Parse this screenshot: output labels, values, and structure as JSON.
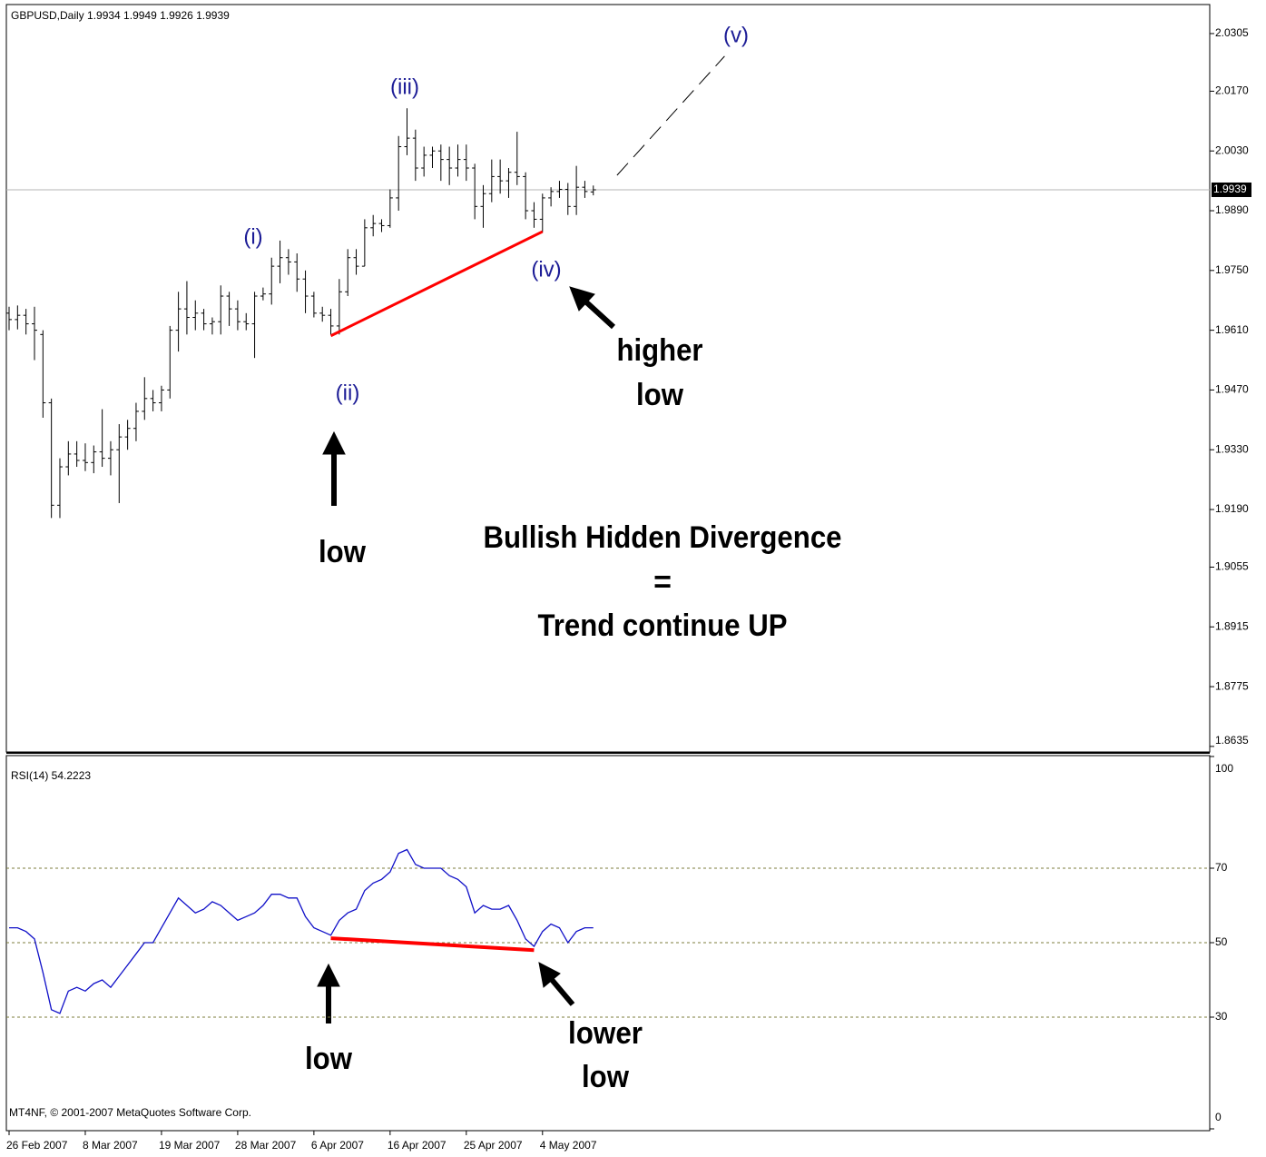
{
  "chart_data": [
    {
      "type": "ohlc",
      "title": "GBPUSD,Daily  1.9934 1.9949 1.9926 1.9939",
      "categories": [
        "26 Feb 2007",
        null,
        null,
        null,
        null,
        null,
        null,
        null,
        null,
        "8 Mar 2007",
        null,
        null,
        null,
        null,
        null,
        null,
        null,
        null,
        "19 Mar 2007",
        null,
        null,
        null,
        null,
        null,
        null,
        null,
        null,
        "28 Mar 2007",
        null,
        null,
        null,
        null,
        null,
        null,
        null,
        null,
        "6 Apr 2007",
        null,
        null,
        null,
        null,
        null,
        null,
        null,
        null,
        "16 Apr 2007",
        null,
        null,
        null,
        null,
        null,
        null,
        null,
        null,
        "25 Apr 2007",
        null,
        null,
        null,
        null,
        null,
        null,
        null,
        null,
        "4 May 2007",
        null,
        null,
        null,
        null,
        null,
        null
      ],
      "open": [
        1.965,
        1.9635,
        1.9645,
        1.9625,
        1.96,
        1.944,
        1.92,
        1.929,
        1.932,
        1.9305,
        1.93,
        1.9325,
        1.931,
        1.933,
        1.936,
        1.938,
        1.942,
        1.945,
        1.944,
        1.947,
        1.961,
        1.966,
        1.964,
        1.965,
        1.9625,
        1.963,
        1.969,
        1.966,
        1.963,
        1.9625,
        1.969,
        1.9695,
        1.976,
        1.978,
        1.977,
        1.973,
        1.969,
        1.965,
        1.9645,
        1.962,
        1.97,
        1.978,
        1.976,
        1.985,
        1.986,
        1.9855,
        1.992,
        2.004,
        2.006,
        1.999,
        2.002,
        2.003,
        2.001,
        1.999,
        2.001,
        1.999,
        1.99,
        1.993,
        1.997,
        1.996,
        1.998,
        1.997,
        1.989,
        1.987,
        1.992,
        1.9935,
        1.994,
        1.99,
        1.9945,
        1.9934
      ],
      "high": [
        1.9665,
        1.9668,
        1.966,
        1.9665,
        1.961,
        1.945,
        1.931,
        1.935,
        1.935,
        1.9345,
        1.934,
        1.9425,
        1.935,
        1.939,
        1.94,
        1.944,
        1.95,
        1.947,
        1.948,
        1.962,
        1.97,
        1.9725,
        1.968,
        1.966,
        1.964,
        1.9715,
        1.97,
        1.968,
        1.965,
        1.97,
        1.971,
        1.978,
        1.982,
        1.98,
        1.979,
        1.975,
        1.97,
        1.9665,
        1.966,
        1.973,
        1.98,
        1.98,
        1.987,
        1.988,
        1.987,
        1.994,
        2.0065,
        2.013,
        2.008,
        2.004,
        2.004,
        2.0045,
        2.004,
        2.0045,
        2.0045,
        2.0,
        1.995,
        2.001,
        2.001,
        1.999,
        2.0075,
        1.998,
        1.991,
        1.993,
        1.9945,
        1.996,
        1.9955,
        1.9995,
        1.996,
        1.9949
      ],
      "low": [
        1.961,
        1.9612,
        1.96,
        1.954,
        1.9405,
        1.917,
        1.917,
        1.927,
        1.929,
        1.928,
        1.9275,
        1.929,
        1.927,
        1.9205,
        1.933,
        1.935,
        1.94,
        1.942,
        1.942,
        1.945,
        1.956,
        1.96,
        1.961,
        1.961,
        1.96,
        1.96,
        1.962,
        1.961,
        1.961,
        1.9545,
        1.968,
        1.967,
        1.972,
        1.974,
        1.97,
        1.965,
        1.964,
        1.963,
        1.96,
        1.96,
        1.969,
        1.974,
        1.976,
        1.983,
        1.984,
        1.985,
        1.989,
        2.002,
        1.996,
        1.997,
        1.999,
        1.996,
        1.995,
        1.997,
        1.996,
        1.987,
        1.985,
        1.991,
        1.993,
        1.992,
        1.995,
        1.987,
        1.985,
        1.984,
        1.99,
        1.992,
        1.988,
        1.988,
        1.992,
        1.9926
      ],
      "close": [
        1.9635,
        1.9645,
        1.9625,
        1.961,
        1.944,
        1.92,
        1.929,
        1.932,
        1.9305,
        1.93,
        1.9325,
        1.931,
        1.933,
        1.936,
        1.938,
        1.942,
        1.945,
        1.944,
        1.947,
        1.961,
        1.966,
        1.964,
        1.965,
        1.9625,
        1.963,
        1.969,
        1.966,
        1.963,
        1.9625,
        1.969,
        1.9695,
        1.976,
        1.978,
        1.977,
        1.973,
        1.969,
        1.965,
        1.9645,
        1.962,
        1.97,
        1.978,
        1.976,
        1.985,
        1.986,
        1.9855,
        1.992,
        2.004,
        2.006,
        1.999,
        2.002,
        2.003,
        2.001,
        1.999,
        2.001,
        1.999,
        1.99,
        1.993,
        1.997,
        1.996,
        1.998,
        1.997,
        1.989,
        1.987,
        1.992,
        1.9935,
        1.994,
        1.99,
        1.9945,
        1.9935,
        1.9939
      ],
      "color": "#000000",
      "ylim": [
        1.8622,
        2.0373
      ],
      "yticks": [
        2.0305,
        {
          "value": 2.017,
          "label": "2.0170"
        },
        {
          "value": 2.003,
          "label": "2.0030"
        },
        {
          "value": 1.989,
          "label": "1.9890"
        },
        {
          "value": 1.975,
          "label": "1.9750"
        },
        {
          "value": 1.961,
          "label": "1.9610"
        },
        {
          "value": 1.947,
          "label": "1.9470"
        },
        {
          "value": 1.933,
          "label": "1.9330"
        },
        {
          "value": 1.919,
          "label": "1.9190"
        },
        1.9055,
        1.8915,
        1.8775,
        1.8635
      ],
      "last_price": 1.9939,
      "trendline": {
        "x": [
          38,
          63
        ],
        "y": [
          1.9597,
          1.9841
        ],
        "color": "#ff0000"
      },
      "projection": {
        "x": [
          71.8,
          84.5
        ],
        "y": [
          1.9973,
          2.0252
        ],
        "color": "#000000"
      },
      "annotations": {
        "wave_i": "(i)",
        "wave_ii": "(ii)",
        "wave_iii": "(iii)",
        "wave_iv": "(iv)",
        "wave_v": "(v)",
        "higher_low": [
          "higher",
          "low"
        ],
        "low": "low",
        "headline": "Bullish Hidden Divergence",
        "equals": "=",
        "conclusion": "Trend continue UP"
      }
    },
    {
      "type": "line",
      "title": "RSI(14) 54.2223",
      "values": [
        54,
        54,
        53,
        51,
        42,
        32,
        31,
        37,
        38,
        37,
        39,
        40,
        38,
        41,
        44,
        47,
        50,
        50,
        54,
        58,
        62,
        60,
        58,
        59,
        61,
        60,
        58,
        56,
        57,
        58,
        60,
        63,
        63,
        62,
        62,
        57,
        54,
        53,
        52,
        56,
        58,
        59,
        64,
        66,
        67,
        69,
        74,
        75,
        71,
        70,
        70,
        70,
        68,
        67,
        65,
        58,
        60,
        59,
        59,
        60,
        56,
        51,
        49,
        53,
        55,
        54,
        50,
        53,
        54,
        54
      ],
      "color": "#1010c8",
      "ylim": [
        0,
        100
      ],
      "yticks": [
        0,
        30,
        50,
        70,
        100
      ],
      "levels": [
        30,
        50,
        70
      ],
      "level_color": "#7c7c3c",
      "trendline": {
        "x": [
          38,
          62
        ],
        "y": [
          51.2,
          48
        ],
        "color": "#ff0000"
      },
      "annotations": {
        "low": "low",
        "lower_low": [
          "lower",
          "low"
        ]
      }
    }
  ],
  "footer": "MT4NF, © 2001-2007 MetaQuotes Software Corp."
}
